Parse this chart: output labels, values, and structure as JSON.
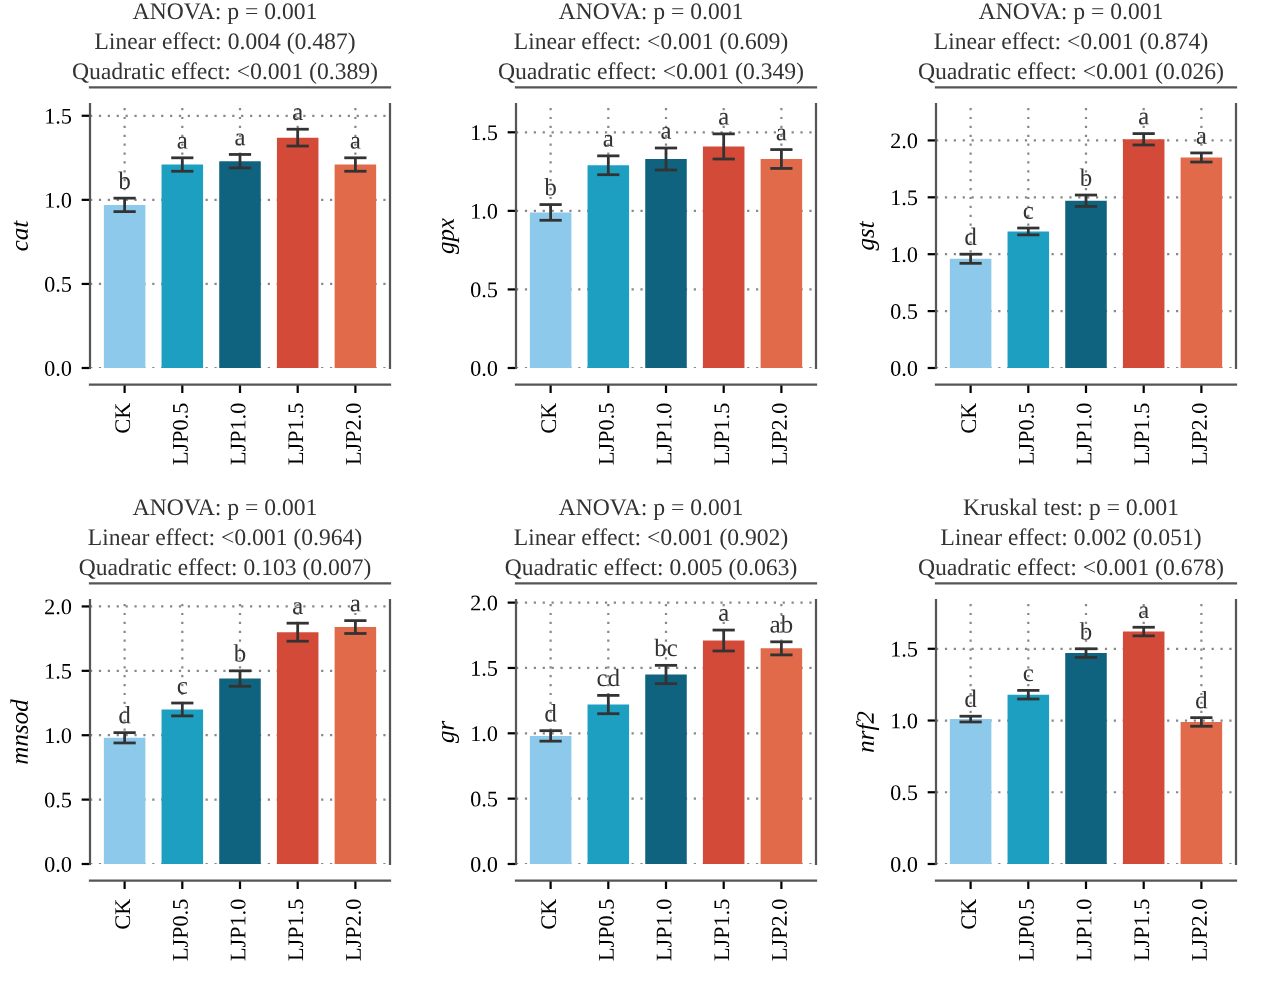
{
  "chart_data": [
    {
      "type": "bar",
      "title": "ANOVA: p = 0.001",
      "subtitle": "Linear effect: 0.004 (0.487)",
      "annotations": [
        "Quadratic effect: <0.001 (0.389)"
      ],
      "ylabel": "cat",
      "categories": [
        "CK",
        "LJP0.5",
        "LJP1.0",
        "LJP1.5",
        "LJP2.0"
      ],
      "values": [
        0.97,
        1.21,
        1.23,
        1.37,
        1.21
      ],
      "errors": [
        0.04,
        0.04,
        0.04,
        0.05,
        0.04
      ],
      "value_labels": [
        "b",
        "a",
        "a",
        "a",
        "a"
      ],
      "colors": [
        "#8dc9ea",
        "#1c9fc1",
        "#10637f",
        "#d44a39",
        "#e06a4a"
      ],
      "ylim": [
        0,
        1.57
      ],
      "yticks": [
        {
          "value": 0,
          "label": "0.0"
        },
        {
          "value": 0.5,
          "label": "0.5"
        },
        {
          "value": 1,
          "label": "1.0"
        },
        {
          "value": 1.5,
          "label": "1.5"
        }
      ],
      "grid": true
    },
    {
      "type": "bar",
      "title": "ANOVA: p = 0.001",
      "subtitle": "Linear effect: <0.001 (0.609)",
      "annotations": [
        "Quadratic effect: <0.001 (0.349)"
      ],
      "ylabel": "gpx",
      "categories": [
        "CK",
        "LJP0.5",
        "LJP1.0",
        "LJP1.5",
        "LJP2.0"
      ],
      "values": [
        0.99,
        1.29,
        1.33,
        1.41,
        1.33
      ],
      "errors": [
        0.05,
        0.06,
        0.07,
        0.08,
        0.06
      ],
      "value_labels": [
        "b",
        "a",
        "a",
        "a",
        "a"
      ],
      "colors": [
        "#8dc9ea",
        "#1c9fc1",
        "#10637f",
        "#d44a39",
        "#e06a4a"
      ],
      "ylim": [
        0,
        1.68
      ],
      "yticks": [
        {
          "value": 0,
          "label": "0.0"
        },
        {
          "value": 0.5,
          "label": "0.5"
        },
        {
          "value": 1,
          "label": "1.0"
        },
        {
          "value": 1.5,
          "label": "1.5"
        }
      ],
      "grid": true
    },
    {
      "type": "bar",
      "title": "ANOVA: p = 0.001",
      "subtitle": "Linear effect: <0.001 (0.874)",
      "annotations": [
        "Quadratic effect: <0.001 (0.026)"
      ],
      "ylabel": "gst",
      "categories": [
        "CK",
        "LJP0.5",
        "LJP1.0",
        "LJP1.5",
        "LJP2.0"
      ],
      "values": [
        0.96,
        1.2,
        1.47,
        2.01,
        1.85
      ],
      "errors": [
        0.04,
        0.03,
        0.05,
        0.05,
        0.04
      ],
      "value_labels": [
        "d",
        "c",
        "b",
        "a",
        "a"
      ],
      "colors": [
        "#8dc9ea",
        "#1c9fc1",
        "#10637f",
        "#d44a39",
        "#e06a4a"
      ],
      "ylim": [
        0,
        2.32
      ],
      "yticks": [
        {
          "value": 0,
          "label": "0.0"
        },
        {
          "value": 0.5,
          "label": "0.5"
        },
        {
          "value": 1,
          "label": "1.0"
        },
        {
          "value": 1.5,
          "label": "1.5"
        },
        {
          "value": 2,
          "label": "2.0"
        }
      ],
      "grid": true
    },
    {
      "type": "bar",
      "title": "ANOVA: p = 0.001",
      "subtitle": "Linear effect: <0.001 (0.964)",
      "annotations": [
        "Quadratic effect: 0.103 (0.007)"
      ],
      "ylabel": "mnsod",
      "categories": [
        "CK",
        "LJP0.5",
        "LJP1.0",
        "LJP1.5",
        "LJP2.0"
      ],
      "values": [
        0.98,
        1.2,
        1.44,
        1.8,
        1.84
      ],
      "errors": [
        0.04,
        0.05,
        0.06,
        0.07,
        0.05
      ],
      "value_labels": [
        "d",
        "c",
        "b",
        "a",
        "a"
      ],
      "colors": [
        "#8dc9ea",
        "#1c9fc1",
        "#10637f",
        "#d44a39",
        "#e06a4a"
      ],
      "ylim": [
        0,
        2.05
      ],
      "yticks": [
        {
          "value": 0,
          "label": "0.0"
        },
        {
          "value": 0.5,
          "label": "0.5"
        },
        {
          "value": 1,
          "label": "1.0"
        },
        {
          "value": 1.5,
          "label": "1.5"
        },
        {
          "value": 2,
          "label": "2.0"
        }
      ],
      "grid": true
    },
    {
      "type": "bar",
      "title": "ANOVA: p = 0.001",
      "subtitle": "Linear effect: <0.001 (0.902)",
      "annotations": [
        "Quadratic effect: 0.005 (0.063)"
      ],
      "ylabel": "gr",
      "categories": [
        "CK",
        "LJP0.5",
        "LJP1.0",
        "LJP1.5",
        "LJP2.0"
      ],
      "values": [
        0.98,
        1.22,
        1.45,
        1.71,
        1.65
      ],
      "errors": [
        0.04,
        0.07,
        0.07,
        0.08,
        0.05
      ],
      "value_labels": [
        "d",
        "cd",
        "bc",
        "a",
        "ab"
      ],
      "colors": [
        "#8dc9ea",
        "#1c9fc1",
        "#10637f",
        "#d44a39",
        "#e06a4a"
      ],
      "ylim": [
        0,
        2.02
      ],
      "yticks": [
        {
          "value": 0,
          "label": "0.0"
        },
        {
          "value": 0.5,
          "label": "0.5"
        },
        {
          "value": 1,
          "label": "1.0"
        },
        {
          "value": 1.5,
          "label": "1.5"
        },
        {
          "value": 2,
          "label": "2.0"
        }
      ],
      "grid": true
    },
    {
      "type": "bar",
      "title": "Kruskal test: p = 0.001",
      "subtitle": "Linear effect: 0.002 (0.051)",
      "annotations": [
        "Quadratic effect: <0.001 (0.678)"
      ],
      "ylabel": "nrf2",
      "categories": [
        "CK",
        "LJP0.5",
        "LJP1.0",
        "LJP1.5",
        "LJP2.0"
      ],
      "values": [
        1.01,
        1.18,
        1.47,
        1.62,
        0.99
      ],
      "errors": [
        0.02,
        0.03,
        0.03,
        0.03,
        0.03
      ],
      "value_labels": [
        "d",
        "c",
        "b",
        "a",
        "d"
      ],
      "colors": [
        "#8dc9ea",
        "#1c9fc1",
        "#10637f",
        "#d44a39",
        "#e06a4a"
      ],
      "ylim": [
        0,
        1.84
      ],
      "yticks": [
        {
          "value": 0,
          "label": "0.0"
        },
        {
          "value": 0.5,
          "label": "0.5"
        },
        {
          "value": 1,
          "label": "1.0"
        },
        {
          "value": 1.5,
          "label": "1.5"
        }
      ],
      "grid": true
    }
  ]
}
